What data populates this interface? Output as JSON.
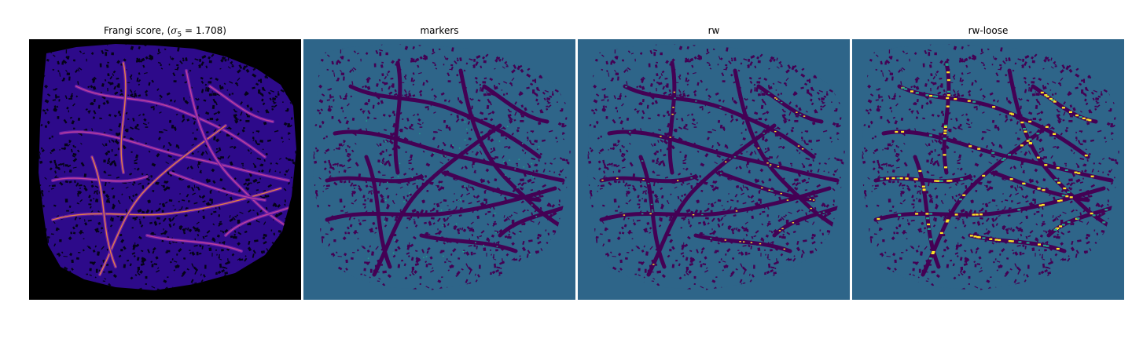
{
  "figure": {
    "panels": [
      {
        "id": "frangi",
        "title_prefix": "Frangi score, (",
        "title_symbol": "σ",
        "title_sub": "5",
        "title_suffix": " = 1.708)",
        "background": "#000000"
      },
      {
        "id": "markers",
        "title": "markers",
        "background": "#2e6589"
      },
      {
        "id": "rw",
        "title": "rw",
        "background": "#2e6589"
      },
      {
        "id": "rw-loose",
        "title": "rw-loose",
        "background": "#2e6589"
      }
    ],
    "colors": {
      "frangi_low": "#2d0a8a",
      "frangi_mid": "#6b1fa6",
      "frangi_high": "#f08a3a",
      "frangi_peak": "#fff07a",
      "label_dark": "#440154",
      "label_mid": "#2e6589",
      "label_teal": "#21a08a",
      "label_yellow": "#fde725"
    }
  }
}
